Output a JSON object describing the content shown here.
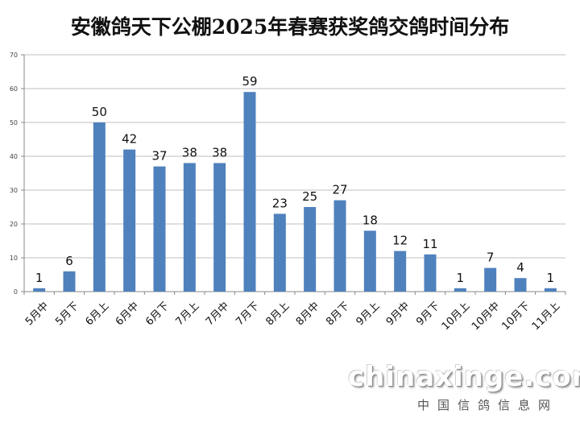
{
  "chart_data": {
    "type": "bar",
    "title": "安徽鸽天下公棚2025年春赛获奖鸽交鸽时间分布",
    "categories": [
      "5月中",
      "5月下",
      "6月上",
      "6月中",
      "6月下",
      "7月上",
      "7月中",
      "7月下",
      "8月上",
      "8月中",
      "8月下",
      "9月上",
      "9月中",
      "9月下",
      "10月上",
      "10月中",
      "10月下",
      "11月上"
    ],
    "values": [
      1,
      6,
      50,
      42,
      37,
      38,
      38,
      59,
      23,
      25,
      27,
      18,
      12,
      11,
      1,
      7,
      4,
      1
    ],
    "ylim": [
      0,
      70
    ],
    "yticks": [
      0,
      10,
      20,
      30,
      40,
      50,
      60,
      70
    ],
    "grid": true,
    "bar_color": "#4f81bd"
  },
  "watermark": {
    "site": "chinaxinge.com",
    "name": "中国信鸽信息网"
  }
}
